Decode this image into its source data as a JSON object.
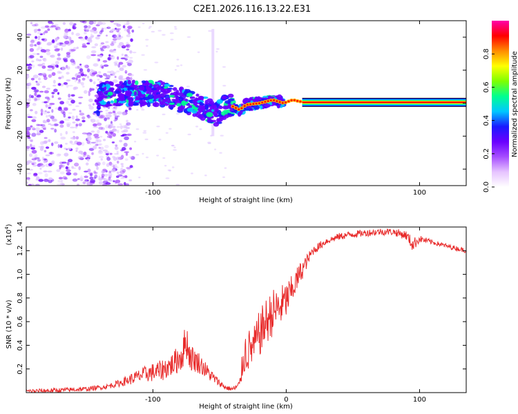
{
  "title": "C2E1.2026.116.13.22.E31",
  "chart_data": [
    {
      "type": "heatmap",
      "name": "spectrogram",
      "xlabel": "Height of straight line (km)",
      "ylabel": "Frequency (Hz)",
      "xlim": [
        -195,
        135
      ],
      "ylim": [
        -50,
        50
      ],
      "xticks": [
        -100,
        0,
        100
      ],
      "xtick_labels": [
        "-100",
        "",
        "100"
      ],
      "yticks": [
        -40,
        -20,
        0,
        20,
        40
      ],
      "ytick_labels": [
        "-40",
        "-20",
        "0",
        "20",
        "40"
      ],
      "ridge": [
        {
          "x": -140,
          "y": 5
        },
        {
          "x": -120,
          "y": 6
        },
        {
          "x": -110,
          "y": 6
        },
        {
          "x": -100,
          "y": 6
        },
        {
          "x": -90,
          "y": 5
        },
        {
          "x": -80,
          "y": 2
        },
        {
          "x": -70,
          "y": 0
        },
        {
          "x": -60,
          "y": -3
        },
        {
          "x": -52,
          "y": -7
        },
        {
          "x": -47,
          "y": -3
        },
        {
          "x": -40,
          "y": -2
        },
        {
          "x": -35,
          "y": -4
        },
        {
          "x": -30,
          "y": -1
        },
        {
          "x": -20,
          "y": 0
        },
        {
          "x": -10,
          "y": 2
        },
        {
          "x": -2,
          "y": 0
        },
        {
          "x": 5,
          "y": 2
        },
        {
          "x": 10,
          "y": 1
        },
        {
          "x": 20,
          "y": 0.5
        },
        {
          "x": 60,
          "y": 0.5
        },
        {
          "x": 100,
          "y": 0.5
        },
        {
          "x": 135,
          "y": 0.5
        }
      ],
      "noise_region_x": [
        -195,
        -135
      ],
      "colorbar": {
        "label": "Normalized spectral amplitude",
        "range": [
          0,
          1
        ],
        "ticks": [
          0.0,
          0.2,
          0.4,
          0.6,
          0.8
        ],
        "tick_labels": [
          "0.0",
          "0.2",
          "0.4",
          "0.6",
          "0.8"
        ],
        "colors": [
          "#ffffff",
          "#e6c3ff",
          "#a64dff",
          "#6a00ff",
          "#1a1aff",
          "#00c8ff",
          "#00ff90",
          "#7fff00",
          "#ffff00",
          "#ff8c00",
          "#ff0000",
          "#ff00aa"
        ]
      }
    },
    {
      "type": "line",
      "name": "snr",
      "xlabel": "Height of straight line (km)",
      "ylabel": "SNR (10 * v/v)",
      "multiplier": "(x10",
      "multiplier_exp": "4",
      "multiplier_close": ")",
      "xlim": [
        -195,
        135
      ],
      "ylim": [
        0,
        1.4
      ],
      "xticks": [
        -100,
        0,
        100
      ],
      "xtick_labels": [
        "-100",
        "0",
        "100"
      ],
      "yticks": [
        0.2,
        0.4,
        0.6,
        0.8,
        1.0,
        1.2,
        1.4
      ],
      "ytick_labels": [
        "0.2",
        "0.4",
        "0.6",
        "0.8",
        "1.0",
        "1.2",
        "1.4"
      ],
      "color": "#e82a2a",
      "series": [
        {
          "name": "SNR",
          "x": [
            -195,
            -170,
            -150,
            -135,
            -125,
            -115,
            -105,
            -95,
            -85,
            -78,
            -75,
            -72,
            -65,
            -58,
            -50,
            -45,
            -40,
            -35,
            -32,
            -30,
            -25,
            -20,
            -15,
            -10,
            -5,
            0,
            5,
            10,
            15,
            20,
            30,
            40,
            50,
            60,
            70,
            80,
            90,
            95,
            100,
            110,
            120,
            135
          ],
          "y": [
            0.01,
            0.02,
            0.03,
            0.05,
            0.08,
            0.12,
            0.16,
            0.18,
            0.24,
            0.32,
            0.45,
            0.3,
            0.25,
            0.16,
            0.08,
            0.04,
            0.03,
            0.06,
            0.3,
            0.35,
            0.38,
            0.5,
            0.6,
            0.68,
            0.72,
            0.78,
            0.88,
            1.0,
            1.1,
            1.2,
            1.28,
            1.32,
            1.34,
            1.35,
            1.36,
            1.36,
            1.33,
            1.25,
            1.3,
            1.27,
            1.24,
            1.2
          ],
          "amp": [
            0.02,
            0.02,
            0.02,
            0.02,
            0.03,
            0.05,
            0.07,
            0.09,
            0.1,
            0.14,
            0.16,
            0.12,
            0.09,
            0.06,
            0.03,
            0.02,
            0.02,
            0.05,
            0.15,
            0.2,
            0.15,
            0.2,
            0.2,
            0.2,
            0.18,
            0.16,
            0.12,
            0.1,
            0.06,
            0.04,
            0.03,
            0.03,
            0.03,
            0.03,
            0.03,
            0.03,
            0.04,
            0.06,
            0.03,
            0.02,
            0.02,
            0.02
          ]
        }
      ]
    }
  ]
}
